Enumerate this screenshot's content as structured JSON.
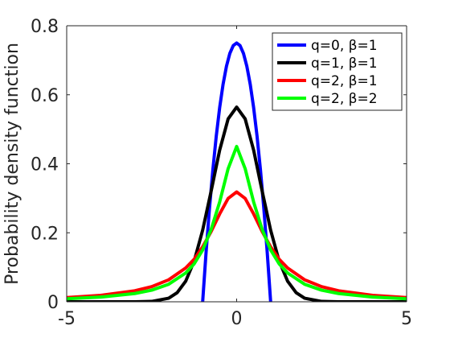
{
  "chart_data": {
    "type": "line",
    "title": "",
    "xlabel": "",
    "ylabel": "Probability density function",
    "xlim": [
      -5,
      5
    ],
    "ylim": [
      0,
      0.8
    ],
    "xticks": [
      -5,
      0,
      5
    ],
    "yticks": [
      0,
      0.2,
      0.4,
      0.6,
      0.8
    ],
    "grid": false,
    "legend_position": "top-right",
    "series": [
      {
        "name": "q=0, β=1",
        "color": "#0000ff",
        "x": [
          -1,
          -0.9,
          -0.8,
          -0.7,
          -0.6,
          -0.5,
          -0.4,
          -0.3,
          -0.2,
          -0.1,
          0,
          0.1,
          0.2,
          0.3,
          0.4,
          0.5,
          0.6,
          0.7,
          0.8,
          0.9,
          1
        ],
        "y": [
          0,
          0.1425,
          0.27,
          0.3825,
          0.48,
          0.5625,
          0.63,
          0.6825,
          0.72,
          0.7425,
          0.75,
          0.7425,
          0.72,
          0.6825,
          0.63,
          0.5625,
          0.48,
          0.3825,
          0.27,
          0.1425,
          0
        ]
      },
      {
        "name": "q=1, β=1",
        "color": "#000000",
        "x": [
          -5,
          -3,
          -2.5,
          -2,
          -1.75,
          -1.5,
          -1.25,
          -1,
          -0.75,
          -0.5,
          -0.25,
          0,
          0.25,
          0.5,
          0.75,
          1,
          1.25,
          1.5,
          1.75,
          2,
          2.5,
          3,
          5
        ],
        "y": [
          0,
          0.0001,
          0.0011,
          0.0103,
          0.0263,
          0.0595,
          0.118,
          0.2076,
          0.3209,
          0.4393,
          0.5302,
          0.5642,
          0.5302,
          0.4393,
          0.3209,
          0.2076,
          0.118,
          0.0595,
          0.0263,
          0.0103,
          0.0011,
          0.0001,
          0
        ]
      },
      {
        "name": "q=2, β=1",
        "color": "#ff0000",
        "x": [
          -5,
          -4,
          -3,
          -2.5,
          -2,
          -1.5,
          -1.25,
          -1,
          -0.75,
          -0.5,
          -0.25,
          0,
          0.25,
          0.5,
          0.75,
          1,
          1.25,
          1.5,
          2,
          2.5,
          3,
          4,
          5
        ],
        "y": [
          0.0122,
          0.0187,
          0.0318,
          0.0439,
          0.0637,
          0.0979,
          0.1234,
          0.1592,
          0.2037,
          0.2546,
          0.2996,
          0.3183,
          0.2996,
          0.2546,
          0.2037,
          0.1592,
          0.1234,
          0.0979,
          0.0637,
          0.0439,
          0.0318,
          0.0187,
          0.0122
        ]
      },
      {
        "name": "q=2, β=2",
        "color": "#00ff00",
        "x": [
          -5,
          -4,
          -3,
          -2.5,
          -2,
          -1.5,
          -1.25,
          -1,
          -0.75,
          -0.5,
          -0.25,
          0,
          0.25,
          0.5,
          0.75,
          1,
          1.25,
          1.5,
          2,
          2.5,
          3,
          4,
          5
        ],
        "y": [
          0.0088,
          0.0137,
          0.0239,
          0.0337,
          0.0508,
          0.0834,
          0.1099,
          0.1501,
          0.2098,
          0.2891,
          0.3859,
          0.4502,
          0.3859,
          0.2891,
          0.2098,
          0.1501,
          0.1099,
          0.0834,
          0.0508,
          0.0337,
          0.0239,
          0.0137,
          0.0088
        ]
      }
    ]
  }
}
